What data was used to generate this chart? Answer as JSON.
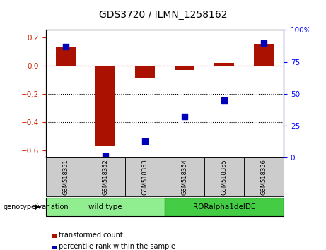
{
  "title": "GDS3720 / ILMN_1258162",
  "samples": [
    "GSM518351",
    "GSM518352",
    "GSM518353",
    "GSM518354",
    "GSM518355",
    "GSM518356"
  ],
  "bar_values": [
    0.13,
    -0.57,
    -0.09,
    -0.03,
    0.02,
    0.15
  ],
  "dot_values": [
    87,
    1,
    13,
    32,
    45,
    90
  ],
  "groups": [
    {
      "label": "wild type",
      "indices": [
        0,
        1,
        2
      ],
      "color": "#90ee90"
    },
    {
      "label": "RORalpha1delDE",
      "indices": [
        3,
        4,
        5
      ],
      "color": "#44cc44"
    }
  ],
  "bar_color": "#aa1100",
  "dot_color": "#0000bb",
  "ylim_left": [
    -0.65,
    0.25
  ],
  "ylim_right": [
    0,
    100
  ],
  "yticks_left": [
    -0.6,
    -0.4,
    -0.2,
    0.0,
    0.2
  ],
  "yticks_right": [
    0,
    25,
    50,
    75,
    100
  ],
  "dotted_lines": [
    -0.2,
    -0.4
  ],
  "legend_labels": [
    "transformed count",
    "percentile rank within the sample"
  ],
  "legend_colors": [
    "#aa1100",
    "#0000bb"
  ],
  "group_label": "genotype/variation",
  "bar_width": 0.5,
  "dot_size": 35,
  "label_color": "#999999",
  "sample_box_color": "#cccccc"
}
